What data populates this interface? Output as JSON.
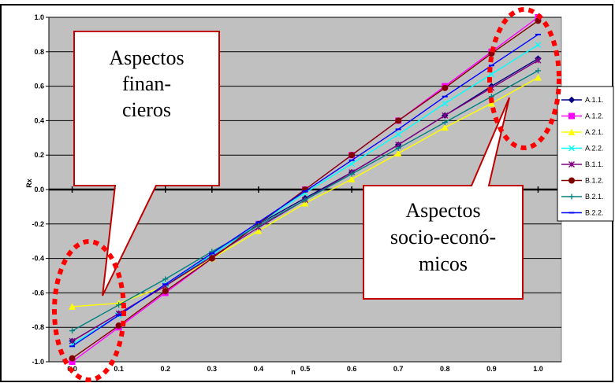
{
  "chart_data": {
    "type": "line",
    "title": "",
    "xlabel": "n",
    "ylabel": "Rx",
    "xlim": [
      -0.05,
      1.05
    ],
    "ylim": [
      -1.0,
      1.0
    ],
    "grid": "horizontal",
    "legend_position": "right",
    "x": [
      0.0,
      0.1,
      0.2,
      0.3,
      0.4,
      0.5,
      0.6,
      0.7,
      0.8,
      0.9,
      1.0
    ],
    "x_tick_labels": [
      "0.0",
      "0.1",
      "0.2",
      "0.3",
      "0.4",
      "0.5",
      "0.6",
      "0.7",
      "0.8",
      "0.9",
      "1.0"
    ],
    "y_ticks": [
      -1.0,
      -0.8,
      -0.6,
      -0.4,
      -0.2,
      0.0,
      0.2,
      0.4,
      0.6,
      0.8,
      1.0
    ],
    "y_tick_labels": [
      "-1.0",
      "-0.8",
      "-0.6",
      "-0.4",
      "-0.2",
      "0.0",
      "0.2",
      "0.4",
      "0.6",
      "0.8",
      "1.0"
    ],
    "series": [
      {
        "name": "A.1.1.",
        "color": "#000080",
        "marker": "diamond",
        "values": [
          -0.88,
          -0.72,
          -0.56,
          -0.38,
          -0.2,
          -0.05,
          0.1,
          0.26,
          0.43,
          0.6,
          0.76
        ]
      },
      {
        "name": "A.1.2.",
        "color": "#ff00ff",
        "marker": "square",
        "values": [
          -1.0,
          -0.8,
          -0.6,
          -0.4,
          -0.2,
          0.0,
          0.2,
          0.4,
          0.6,
          0.8,
          1.0
        ]
      },
      {
        "name": "A.2.1.",
        "color": "#ffff00",
        "marker": "triangle",
        "values": [
          -0.68,
          -0.66,
          -0.56,
          -0.4,
          -0.24,
          -0.08,
          0.06,
          0.21,
          0.36,
          0.5,
          0.65
        ]
      },
      {
        "name": "A.2.2.",
        "color": "#00ffff",
        "marker": "x",
        "values": [
          -0.9,
          -0.73,
          -0.55,
          -0.38,
          -0.2,
          -0.02,
          0.15,
          0.32,
          0.5,
          0.67,
          0.84
        ]
      },
      {
        "name": "B.1.1.",
        "color": "#800080",
        "marker": "star",
        "values": [
          -0.88,
          -0.72,
          -0.56,
          -0.39,
          -0.22,
          -0.06,
          0.1,
          0.26,
          0.43,
          0.59,
          0.75
        ]
      },
      {
        "name": "B.1.2.",
        "color": "#800000",
        "marker": "circle",
        "values": [
          -0.98,
          -0.79,
          -0.59,
          -0.4,
          -0.2,
          0.0,
          0.2,
          0.4,
          0.59,
          0.79,
          0.98
        ]
      },
      {
        "name": "B.2.1.",
        "color": "#008080",
        "marker": "plus",
        "values": [
          -0.82,
          -0.67,
          -0.52,
          -0.36,
          -0.21,
          -0.06,
          0.09,
          0.24,
          0.39,
          0.54,
          0.69
        ]
      },
      {
        "name": "B.2.2.",
        "color": "#0000ff",
        "marker": "dash",
        "values": [
          -0.91,
          -0.73,
          -0.55,
          -0.37,
          -0.19,
          -0.01,
          0.17,
          0.35,
          0.54,
          0.72,
          0.9
        ]
      }
    ],
    "annotations": [
      {
        "lines": [
          "Aspectos",
          "finan-",
          "cieros"
        ]
      },
      {
        "lines": [
          "Aspectos",
          "socio-econó-",
          "micos"
        ]
      }
    ]
  }
}
